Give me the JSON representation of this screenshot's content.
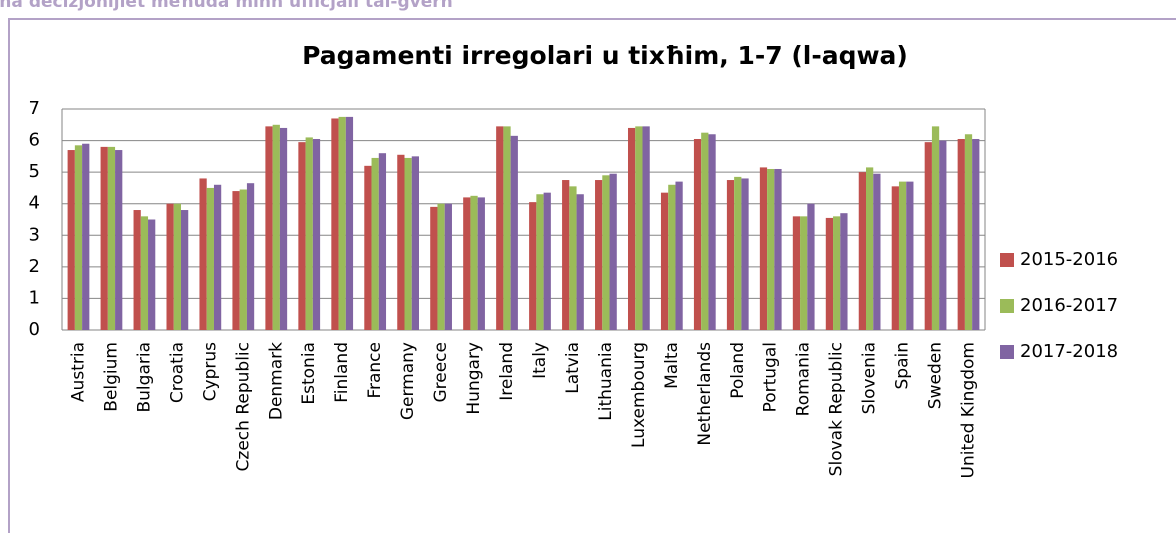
{
  "caption": "ħa deċiżjonijiet meħuda minn uffiċjali tal-gvern",
  "chart_data": {
    "type": "bar",
    "title": "Pagamenti irregolari u tixħim, 1-7 (l-aqwa)",
    "categories": [
      "Austria",
      "Belgium",
      "Bulgaria",
      "Croatia",
      "Cyprus",
      "Czech Republic",
      "Denmark",
      "Estonia",
      "Finland",
      "France",
      "Germany",
      "Greece",
      "Hungary",
      "Ireland",
      "Italy",
      "Latvia",
      "Lithuania",
      "Luxembourg",
      "Malta",
      "Netherlands",
      "Poland",
      "Portugal",
      "Romania",
      "Slovak Republic",
      "Slovenia",
      "Spain",
      "Sweden",
      "United Kingdom"
    ],
    "series": [
      {
        "name": "2015-2016",
        "color": "#c0504d",
        "values": [
          5.7,
          5.8,
          3.8,
          4.0,
          4.8,
          4.4,
          6.45,
          5.95,
          6.7,
          5.2,
          5.55,
          3.9,
          4.2,
          6.45,
          4.05,
          4.75,
          4.75,
          6.4,
          4.35,
          6.05,
          4.75,
          5.15,
          3.6,
          3.55,
          5.0,
          4.55,
          5.95,
          6.05
        ]
      },
      {
        "name": "2016-2017",
        "color": "#9bbb59",
        "values": [
          5.85,
          5.8,
          3.6,
          4.0,
          4.5,
          4.45,
          6.5,
          6.1,
          6.75,
          5.45,
          5.45,
          4.0,
          4.25,
          6.45,
          4.3,
          4.55,
          4.9,
          6.45,
          4.6,
          6.25,
          4.85,
          5.1,
          3.6,
          3.6,
          5.15,
          4.7,
          6.45,
          6.2
        ]
      },
      {
        "name": "2017-2018",
        "color": "#8064a2",
        "values": [
          5.9,
          5.7,
          3.5,
          3.8,
          4.6,
          4.65,
          6.4,
          6.05,
          6.75,
          5.6,
          5.5,
          4.0,
          4.2,
          6.15,
          4.35,
          4.3,
          4.95,
          6.45,
          4.7,
          6.2,
          4.8,
          5.1,
          4.0,
          3.7,
          4.95,
          4.7,
          6.0,
          6.05
        ]
      }
    ],
    "ylim": [
      0,
      7
    ],
    "yticks": [
      0,
      1,
      2,
      3,
      4,
      5,
      6,
      7
    ],
    "grid": true,
    "legend": "right"
  }
}
